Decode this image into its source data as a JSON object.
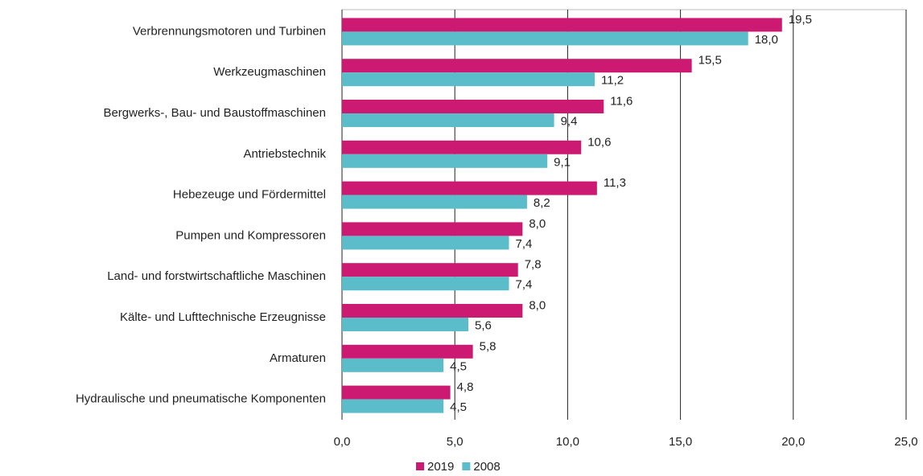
{
  "chart_data": {
    "type": "hbar",
    "categories": [
      "Verbrennungsmotoren und Turbinen",
      "Werkzeugmaschinen",
      "Bergwerks-, Bau- und Baustoffmaschinen",
      "Antriebstechnik",
      "Hebezeuge und Fördermittel",
      "Pumpen und Kompressoren",
      "Land- und forstwirtschaftliche Maschinen",
      "Kälte- und Lufttechnische Erzeugnisse",
      "Armaturen",
      "Hydraulische und pneumatische Komponenten"
    ],
    "series": [
      {
        "name": "2019",
        "color": "#cc1a72",
        "values": [
          19.5,
          15.5,
          11.6,
          10.6,
          11.3,
          8.0,
          7.8,
          8.0,
          5.8,
          4.8
        ],
        "value_labels": [
          "19,5",
          "15,5",
          "11,6",
          "10,6",
          "11,3",
          "8,0",
          "7,8",
          "8,0",
          "5,8",
          "4,8"
        ]
      },
      {
        "name": "2008",
        "color": "#5bbcca",
        "values": [
          18.0,
          11.2,
          9.4,
          9.1,
          8.2,
          7.4,
          7.4,
          5.6,
          4.5,
          4.5
        ],
        "value_labels": [
          "18,0",
          "11,2",
          "9,4",
          "9,1",
          "8,2",
          "7,4",
          "7,4",
          "5,6",
          "4,5",
          "4,5"
        ]
      }
    ],
    "xlim": [
      0,
      25
    ],
    "xticks": [
      {
        "value": 0,
        "label": "0,0"
      },
      {
        "value": 5,
        "label": "5,0"
      },
      {
        "value": 10,
        "label": "10,0"
      },
      {
        "value": 15,
        "label": "15,0"
      },
      {
        "value": 20,
        "label": "20,0"
      },
      {
        "value": 25,
        "label": "25,0"
      }
    ],
    "grid": true,
    "legend": "bottom"
  }
}
